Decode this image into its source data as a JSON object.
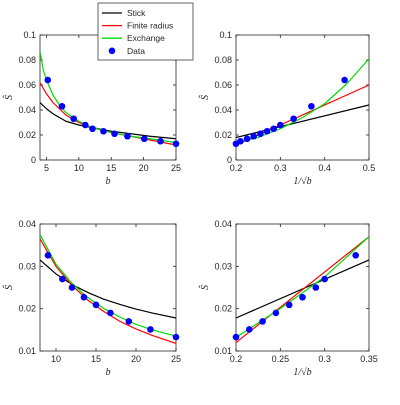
{
  "chart_data": [
    {
      "type": "line",
      "xlabel": "b",
      "ylabel": "Ŝ",
      "xlim": [
        4,
        25
      ],
      "ylim": [
        0,
        0.1
      ],
      "xticks": [
        5,
        10,
        15,
        20,
        25
      ],
      "xtick_labels": [
        "5",
        "10",
        "15",
        "20",
        "25"
      ],
      "yticks": [
        0,
        0.02,
        0.04,
        0.06,
        0.08,
        0.1
      ],
      "ytick_labels": [
        "0",
        "0.02",
        "0.04",
        "0.06",
        "0.08",
        "0.1"
      ],
      "legend": {
        "position": "top-right",
        "entries": [
          {
            "label": "Stick",
            "color": "#000000",
            "marker": "line"
          },
          {
            "label": "Finite radius",
            "color": "#ff0000",
            "marker": "line"
          },
          {
            "label": "Exchange",
            "color": "#00dd00",
            "marker": "line"
          },
          {
            "label": "Data",
            "color": "#0000ff",
            "marker": "dot"
          }
        ]
      },
      "series": [
        {
          "name": "Stick",
          "color": "#000000",
          "x": [
            4,
            5,
            6,
            7,
            8,
            10,
            12,
            15,
            18,
            21,
            25
          ],
          "y": [
            0.046,
            0.041,
            0.037,
            0.034,
            0.031,
            0.028,
            0.026,
            0.023,
            0.021,
            0.019,
            0.017
          ]
        },
        {
          "name": "Finite radius",
          "color": "#ff0000",
          "x": [
            4,
            5,
            6,
            7,
            8,
            10,
            12,
            15,
            18,
            21,
            25
          ],
          "y": [
            0.062,
            0.053,
            0.046,
            0.041,
            0.036,
            0.03,
            0.026,
            0.022,
            0.019,
            0.016,
            0.012
          ]
        },
        {
          "name": "Exchange",
          "color": "#00dd00",
          "x": [
            4,
            4.5,
            5,
            6,
            7,
            8,
            10,
            12,
            15,
            18,
            21,
            25
          ],
          "y": [
            0.087,
            0.072,
            0.064,
            0.052,
            0.044,
            0.038,
            0.031,
            0.026,
            0.022,
            0.019,
            0.017,
            0.014
          ]
        },
        {
          "name": "Data",
          "color": "#0000ff",
          "type": "scatter",
          "x": [
            5.2,
            7.4,
            9.2,
            11.0,
            12.1,
            13.8,
            15.5,
            17.5,
            20.1,
            22.6,
            25.0
          ],
          "y": [
            0.064,
            0.043,
            0.033,
            0.028,
            0.025,
            0.023,
            0.021,
            0.019,
            0.017,
            0.015,
            0.013
          ]
        }
      ]
    },
    {
      "type": "line",
      "xlabel": "1/√b",
      "ylabel": "Ŝ",
      "xlim": [
        0.2,
        0.5
      ],
      "ylim": [
        0,
        0.1
      ],
      "xticks": [
        0.2,
        0.3,
        0.4,
        0.5
      ],
      "xtick_labels": [
        "0.2",
        "0.3",
        "0.4",
        "0.5"
      ],
      "yticks": [
        0,
        0.02,
        0.04,
        0.06,
        0.08,
        0.1
      ],
      "ytick_labels": [
        "0",
        "0.02",
        "0.04",
        "0.06",
        "0.08",
        "0.1"
      ],
      "series": [
        {
          "name": "Stick",
          "color": "#000000",
          "x": [
            0.2,
            0.5
          ],
          "y": [
            0.018,
            0.044
          ]
        },
        {
          "name": "Finite radius",
          "color": "#ff0000",
          "x": [
            0.2,
            0.5
          ],
          "y": [
            0.012,
            0.06
          ]
        },
        {
          "name": "Exchange",
          "color": "#00dd00",
          "x": [
            0.2,
            0.25,
            0.3,
            0.35,
            0.4,
            0.45,
            0.5
          ],
          "y": [
            0.014,
            0.018,
            0.025,
            0.034,
            0.045,
            0.061,
            0.081
          ]
        },
        {
          "name": "Data",
          "color": "#0000ff",
          "type": "scatter",
          "x": [
            0.2,
            0.21,
            0.225,
            0.24,
            0.255,
            0.27,
            0.285,
            0.3,
            0.33,
            0.37,
            0.445
          ],
          "y": [
            0.013,
            0.015,
            0.017,
            0.019,
            0.021,
            0.023,
            0.025,
            0.028,
            0.033,
            0.043,
            0.064
          ]
        }
      ]
    },
    {
      "type": "line",
      "xlabel": "b",
      "ylabel": "Ŝ",
      "xlim": [
        8,
        25
      ],
      "ylim": [
        0.01,
        0.04
      ],
      "xticks": [
        10,
        15,
        20,
        25
      ],
      "xtick_labels": [
        "10",
        "15",
        "20",
        "25"
      ],
      "yticks": [
        0.01,
        0.02,
        0.03,
        0.04
      ],
      "ytick_labels": [
        "0.01",
        "0.02",
        "0.03",
        "0.04"
      ],
      "series": [
        {
          "name": "Stick",
          "color": "#000000",
          "x": [
            8,
            10,
            12,
            14,
            16,
            18,
            20,
            22,
            25
          ],
          "y": [
            0.0315,
            0.0282,
            0.0257,
            0.0238,
            0.0222,
            0.021,
            0.0199,
            0.019,
            0.0178
          ]
        },
        {
          "name": "Finite radius",
          "color": "#ff0000",
          "x": [
            8,
            10,
            12,
            14,
            16,
            18,
            20,
            22,
            25
          ],
          "y": [
            0.0365,
            0.03,
            0.0255,
            0.022,
            0.0193,
            0.017,
            0.0152,
            0.0137,
            0.0118
          ]
        },
        {
          "name": "Exchange",
          "color": "#00dd00",
          "x": [
            8,
            10,
            12,
            14,
            16,
            18,
            20,
            22,
            25
          ],
          "y": [
            0.0375,
            0.0305,
            0.026,
            0.0226,
            0.02,
            0.018,
            0.0163,
            0.015,
            0.0135
          ]
        },
        {
          "name": "Data",
          "color": "#0000ff",
          "type": "scatter",
          "x": [
            9.0,
            10.8,
            12.0,
            13.5,
            15.0,
            16.8,
            19.1,
            21.8,
            25.0
          ],
          "y": [
            0.0326,
            0.027,
            0.025,
            0.0227,
            0.0209,
            0.019,
            0.017,
            0.0151,
            0.0133
          ]
        }
      ]
    },
    {
      "type": "line",
      "xlabel": "1/√b",
      "ylabel": "Ŝ",
      "xlim": [
        0.2,
        0.35
      ],
      "ylim": [
        0.01,
        0.04
      ],
      "xticks": [
        0.2,
        0.25,
        0.3,
        0.35
      ],
      "xtick_labels": [
        "0.2",
        "0.25",
        "0.3",
        "0.35"
      ],
      "yticks": [
        0.01,
        0.02,
        0.03,
        0.04
      ],
      "ytick_labels": [
        "0.01",
        "0.02",
        "0.03",
        "0.04"
      ],
      "series": [
        {
          "name": "Stick",
          "color": "#000000",
          "x": [
            0.2,
            0.35
          ],
          "y": [
            0.0178,
            0.0315
          ]
        },
        {
          "name": "Finite radius",
          "color": "#ff0000",
          "x": [
            0.2,
            0.35
          ],
          "y": [
            0.012,
            0.037
          ]
        },
        {
          "name": "Exchange",
          "color": "#00dd00",
          "x": [
            0.2,
            0.25,
            0.3,
            0.35
          ],
          "y": [
            0.0132,
            0.02,
            0.0275,
            0.037
          ]
        },
        {
          "name": "Data",
          "color": "#0000ff",
          "type": "scatter",
          "x": [
            0.2,
            0.215,
            0.23,
            0.245,
            0.26,
            0.275,
            0.29,
            0.3,
            0.335
          ],
          "y": [
            0.0133,
            0.0151,
            0.017,
            0.019,
            0.0209,
            0.0227,
            0.025,
            0.027,
            0.0326
          ]
        }
      ]
    }
  ]
}
